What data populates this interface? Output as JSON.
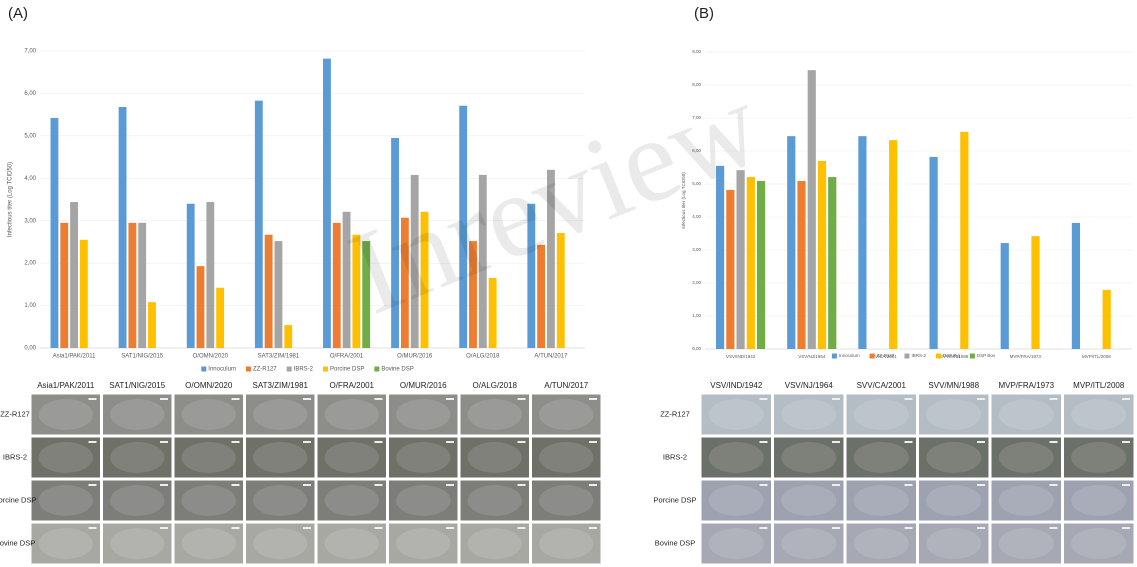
{
  "panel_labels": [
    "(A)",
    "(B)"
  ],
  "watermark": "Inreview",
  "chart_data": [
    {
      "type": "bar",
      "y_label": "Infectious titer (Log TCID50)",
      "categories": [
        "Asia1/PAK/2011",
        "SAT1/NIG/2015",
        "O/OMN/2020",
        "SAT3/ZIM/1981",
        "O/FRA/2001",
        "O/MUR/2016",
        "O/ALG/2018",
        "A/TUN/2017"
      ],
      "series": [
        {
          "name": "Innoculum",
          "color": "#5b9bd5",
          "values": [
            5.42,
            5.68,
            3.4,
            5.83,
            6.82,
            4.95,
            5.71,
            3.4
          ]
        },
        {
          "name": "ZZ-R127",
          "color": "#ed7d31",
          "values": [
            2.95,
            2.95,
            1.93,
            2.67,
            2.95,
            3.07,
            2.52,
            2.43
          ]
        },
        {
          "name": "IBRS-2",
          "color": "#a5a5a5",
          "values": [
            3.44,
            2.95,
            3.44,
            2.52,
            3.21,
            4.08,
            4.08,
            4.2
          ]
        },
        {
          "name": "Porcine DSP",
          "color": "#ffc000",
          "values": [
            2.55,
            1.08,
            1.42,
            0.54,
            2.67,
            3.21,
            1.65,
            2.71
          ]
        },
        {
          "name": "Bovine DSP",
          "color": "#70ad47",
          "values": [
            null,
            null,
            null,
            null,
            2.52,
            null,
            null,
            null
          ]
        }
      ],
      "ylim": [
        0,
        7
      ],
      "yticks": [
        {
          "value": 0,
          "label": "0,00"
        },
        {
          "value": 1,
          "label": "1,00"
        },
        {
          "value": 2,
          "label": "2,00"
        },
        {
          "value": 3,
          "label": "3,00"
        },
        {
          "value": 4,
          "label": "4,00"
        },
        {
          "value": 5,
          "label": "5,00"
        },
        {
          "value": 6,
          "label": "6,00"
        },
        {
          "value": 7,
          "label": "7,00"
        }
      ],
      "grid": true,
      "legend": "bottom",
      "micrograph_rows": [
        "ZZ-R127",
        "IBRS-2",
        "Porcine DSP",
        "Bovine DSP"
      ]
    },
    {
      "type": "bar",
      "y_label": "Infectious titer (Log TCID50)",
      "categories": [
        "VSV/IND/1942",
        "VSV/NJ/1964",
        "SVV/CA/2001",
        "SVV/MN/1988",
        "MVP/FRA/1973",
        "MVP/ITL/2008"
      ],
      "series": [
        {
          "name": "Innoculum",
          "color": "#5b9bd5",
          "values": [
            5.55,
            6.45,
            6.45,
            5.82,
            3.21,
            3.82
          ]
        },
        {
          "name": "ZZ-R127",
          "color": "#ed7d31",
          "values": [
            4.82,
            5.09,
            null,
            null,
            null,
            null
          ]
        },
        {
          "name": "IBRS-2",
          "color": "#a5a5a5",
          "values": [
            5.42,
            8.45,
            null,
            null,
            null,
            null
          ]
        },
        {
          "name": "DSP Pig",
          "color": "#ffc000",
          "values": [
            5.21,
            5.7,
            6.33,
            6.58,
            3.42,
            1.79
          ]
        },
        {
          "name": "DSP Bov",
          "color": "#70ad47",
          "values": [
            5.09,
            5.21,
            null,
            null,
            null,
            null
          ]
        }
      ],
      "ylim": [
        0,
        9
      ],
      "yticks": [
        {
          "value": 0,
          "label": "0,00"
        },
        {
          "value": 1,
          "label": "1,00"
        },
        {
          "value": 2,
          "label": "2,00"
        },
        {
          "value": 3,
          "label": "3,00"
        },
        {
          "value": 4,
          "label": "4,00"
        },
        {
          "value": 5,
          "label": "5,00"
        },
        {
          "value": 6,
          "label": "6,00"
        },
        {
          "value": 7,
          "label": "7,00"
        },
        {
          "value": 8,
          "label": "8,00"
        },
        {
          "value": 9,
          "label": "9,00"
        }
      ],
      "grid": true,
      "legend": "bottom",
      "micrograph_rows": [
        "ZZ-R127",
        "IBRS-2",
        "Porcine DSP",
        "Bovine DSP"
      ]
    }
  ]
}
